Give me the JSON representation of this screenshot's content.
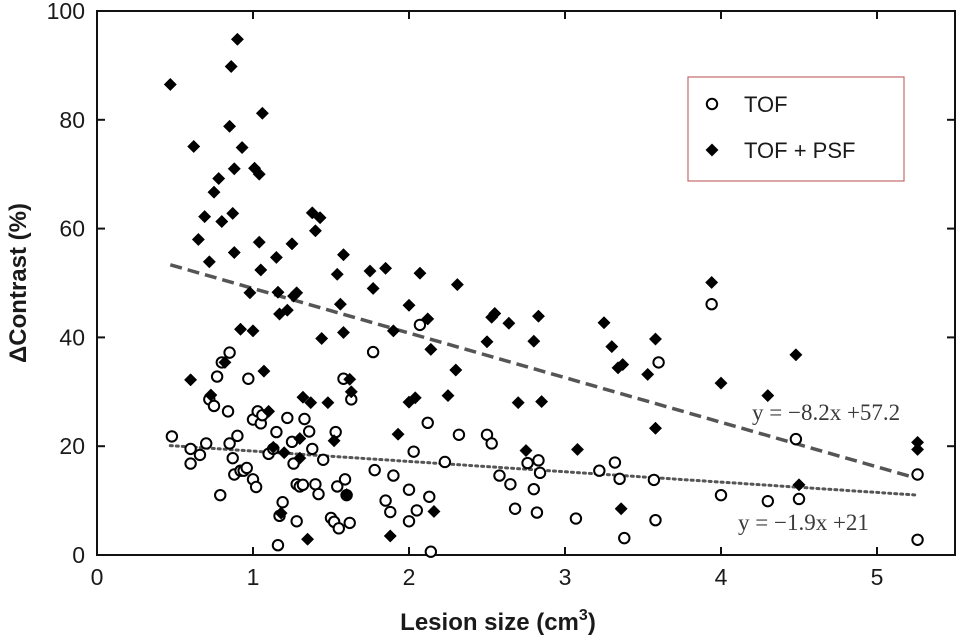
{
  "chart_data": {
    "type": "scatter",
    "xlabel_main": "Lesion size (cm",
    "xlabel_sup": "3",
    "xlabel_close": ")",
    "ylabel": "ΔContrast (%)",
    "xlim": [
      0,
      5.5
    ],
    "ylim": [
      0,
      100
    ],
    "xticks": [
      0,
      1,
      2,
      3,
      4,
      5
    ],
    "yticks": [
      0,
      20,
      40,
      60,
      80,
      100
    ],
    "grid": false,
    "legend_position": "top-right",
    "series": [
      {
        "name": "TOF",
        "marker": "open-circle",
        "color": "#000000",
        "points": [
          [
            0.48,
            21.8
          ],
          [
            0.6,
            19.5
          ],
          [
            0.6,
            16.8
          ],
          [
            0.66,
            18.4
          ],
          [
            0.7,
            20.5
          ],
          [
            0.72,
            28.6
          ],
          [
            0.75,
            27.4
          ],
          [
            0.77,
            32.8
          ],
          [
            0.79,
            11.0
          ],
          [
            0.8,
            35.4
          ],
          [
            0.84,
            26.4
          ],
          [
            0.85,
            37.2
          ],
          [
            0.85,
            20.5
          ],
          [
            0.87,
            17.8
          ],
          [
            0.88,
            14.8
          ],
          [
            0.9,
            21.9
          ],
          [
            0.92,
            15.5
          ],
          [
            0.94,
            15.5
          ],
          [
            0.96,
            16.0
          ],
          [
            0.97,
            32.4
          ],
          [
            1.0,
            24.9
          ],
          [
            1.0,
            13.9
          ],
          [
            1.02,
            12.5
          ],
          [
            1.03,
            26.4
          ],
          [
            1.05,
            24.2
          ],
          [
            1.06,
            25.7
          ],
          [
            1.1,
            18.6
          ],
          [
            1.13,
            19.5
          ],
          [
            1.15,
            22.6
          ],
          [
            1.16,
            1.8
          ],
          [
            1.17,
            7.2
          ],
          [
            1.19,
            9.7
          ],
          [
            1.22,
            25.2
          ],
          [
            1.25,
            20.8
          ],
          [
            1.26,
            16.8
          ],
          [
            1.28,
            13.0
          ],
          [
            1.28,
            6.2
          ],
          [
            1.3,
            12.6
          ],
          [
            1.32,
            12.9
          ],
          [
            1.33,
            25.0
          ],
          [
            1.36,
            22.7
          ],
          [
            1.38,
            19.5
          ],
          [
            1.4,
            13.0
          ],
          [
            1.42,
            11.2
          ],
          [
            1.45,
            17.5
          ],
          [
            1.5,
            6.8
          ],
          [
            1.52,
            6.1
          ],
          [
            1.53,
            22.6
          ],
          [
            1.54,
            12.6
          ],
          [
            1.55,
            4.9
          ],
          [
            1.58,
            32.4
          ],
          [
            1.59,
            13.9
          ],
          [
            1.6,
            11.0
          ],
          [
            1.62,
            5.9
          ],
          [
            1.63,
            28.6
          ],
          [
            1.77,
            37.3
          ],
          [
            1.78,
            15.6
          ],
          [
            1.85,
            10.0
          ],
          [
            1.88,
            7.9
          ],
          [
            1.9,
            14.6
          ],
          [
            2.0,
            12.0
          ],
          [
            2.0,
            6.2
          ],
          [
            2.03,
            19.0
          ],
          [
            2.05,
            8.2
          ],
          [
            2.07,
            42.3
          ],
          [
            2.12,
            24.3
          ],
          [
            2.13,
            10.7
          ],
          [
            2.14,
            0.6
          ],
          [
            2.23,
            17.1
          ],
          [
            2.32,
            22.1
          ],
          [
            2.5,
            22.1
          ],
          [
            2.53,
            20.5
          ],
          [
            2.58,
            14.6
          ],
          [
            2.65,
            13.0
          ],
          [
            2.68,
            8.5
          ],
          [
            2.76,
            16.9
          ],
          [
            2.8,
            12.1
          ],
          [
            2.82,
            7.8
          ],
          [
            2.83,
            17.4
          ],
          [
            2.84,
            15.1
          ],
          [
            3.07,
            6.7
          ],
          [
            3.22,
            15.5
          ],
          [
            3.32,
            17.0
          ],
          [
            3.35,
            14.0
          ],
          [
            3.38,
            3.1
          ],
          [
            3.57,
            13.8
          ],
          [
            3.58,
            6.4
          ],
          [
            3.6,
            35.4
          ],
          [
            3.94,
            46.1
          ],
          [
            4.0,
            11.0
          ],
          [
            4.3,
            9.9
          ],
          [
            4.48,
            21.3
          ],
          [
            4.5,
            10.3
          ],
          [
            5.26,
            14.8
          ],
          [
            5.26,
            2.8
          ]
        ]
      },
      {
        "name": "TOF + PSF",
        "marker": "filled-diamond",
        "color": "#000000",
        "points": [
          [
            0.47,
            86.5
          ],
          [
            0.6,
            32.2
          ],
          [
            0.62,
            75.1
          ],
          [
            0.65,
            58.0
          ],
          [
            0.69,
            62.2
          ],
          [
            0.72,
            53.9
          ],
          [
            0.73,
            29.4
          ],
          [
            0.75,
            66.7
          ],
          [
            0.78,
            69.2
          ],
          [
            0.8,
            61.3
          ],
          [
            0.82,
            35.4
          ],
          [
            0.85,
            78.8
          ],
          [
            0.86,
            89.8
          ],
          [
            0.87,
            62.8
          ],
          [
            0.88,
            71.0
          ],
          [
            0.88,
            55.6
          ],
          [
            0.9,
            94.8
          ],
          [
            0.92,
            41.5
          ],
          [
            0.93,
            74.9
          ],
          [
            0.98,
            48.2
          ],
          [
            1.0,
            41.2
          ],
          [
            1.01,
            71.1
          ],
          [
            1.04,
            70.0
          ],
          [
            1.04,
            57.5
          ],
          [
            1.05,
            52.4
          ],
          [
            1.06,
            81.2
          ],
          [
            1.07,
            33.8
          ],
          [
            1.1,
            26.4
          ],
          [
            1.13,
            19.8
          ],
          [
            1.15,
            54.7
          ],
          [
            1.16,
            48.3
          ],
          [
            1.17,
            44.3
          ],
          [
            1.18,
            7.7
          ],
          [
            1.2,
            18.8
          ],
          [
            1.22,
            45.0
          ],
          [
            1.25,
            57.2
          ],
          [
            1.26,
            47.6
          ],
          [
            1.28,
            48.2
          ],
          [
            1.3,
            21.4
          ],
          [
            1.3,
            17.8
          ],
          [
            1.32,
            29.0
          ],
          [
            1.35,
            2.9
          ],
          [
            1.37,
            28.0
          ],
          [
            1.38,
            62.9
          ],
          [
            1.4,
            59.6
          ],
          [
            1.43,
            62.0
          ],
          [
            1.44,
            39.8
          ],
          [
            1.48,
            28.0
          ],
          [
            1.52,
            21.0
          ],
          [
            1.54,
            51.6
          ],
          [
            1.56,
            46.1
          ],
          [
            1.58,
            55.2
          ],
          [
            1.58,
            40.9
          ],
          [
            1.6,
            11.1
          ],
          [
            1.62,
            32.3
          ],
          [
            1.63,
            30.0
          ],
          [
            1.75,
            52.2
          ],
          [
            1.77,
            49.0
          ],
          [
            1.85,
            52.7
          ],
          [
            1.88,
            3.5
          ],
          [
            1.9,
            41.2
          ],
          [
            1.93,
            22.2
          ],
          [
            2.0,
            45.9
          ],
          [
            2.0,
            28.1
          ],
          [
            2.04,
            28.9
          ],
          [
            2.07,
            51.8
          ],
          [
            2.12,
            43.4
          ],
          [
            2.14,
            37.8
          ],
          [
            2.16,
            8.0
          ],
          [
            2.25,
            29.3
          ],
          [
            2.3,
            34.0
          ],
          [
            2.31,
            49.7
          ],
          [
            2.5,
            39.2
          ],
          [
            2.53,
            43.7
          ],
          [
            2.55,
            44.4
          ],
          [
            2.64,
            42.6
          ],
          [
            2.7,
            28.0
          ],
          [
            2.75,
            19.2
          ],
          [
            2.8,
            39.3
          ],
          [
            2.83,
            43.9
          ],
          [
            2.85,
            28.2
          ],
          [
            3.08,
            19.4
          ],
          [
            3.25,
            42.7
          ],
          [
            3.3,
            38.3
          ],
          [
            3.34,
            34.4
          ],
          [
            3.36,
            8.5
          ],
          [
            3.37,
            35.0
          ],
          [
            3.53,
            33.2
          ],
          [
            3.58,
            39.7
          ],
          [
            3.58,
            23.3
          ],
          [
            3.94,
            50.1
          ],
          [
            4.0,
            31.6
          ],
          [
            4.3,
            29.3
          ],
          [
            4.48,
            36.8
          ],
          [
            4.5,
            12.9
          ],
          [
            5.26,
            20.7
          ],
          [
            5.26,
            19.4
          ]
        ]
      }
    ],
    "fits": [
      {
        "series": "TOF + PSF",
        "style": "dashed",
        "color": "#555555",
        "slope": -8.2,
        "intercept": 57.2,
        "x_range": [
          0.47,
          5.26
        ],
        "label": "y = −8.2x +57.2"
      },
      {
        "series": "TOF",
        "style": "dotted",
        "color": "#555555",
        "slope": -1.9,
        "intercept": 21,
        "x_range": [
          0.47,
          5.26
        ],
        "label": "y = −1.9x +21"
      }
    ]
  }
}
